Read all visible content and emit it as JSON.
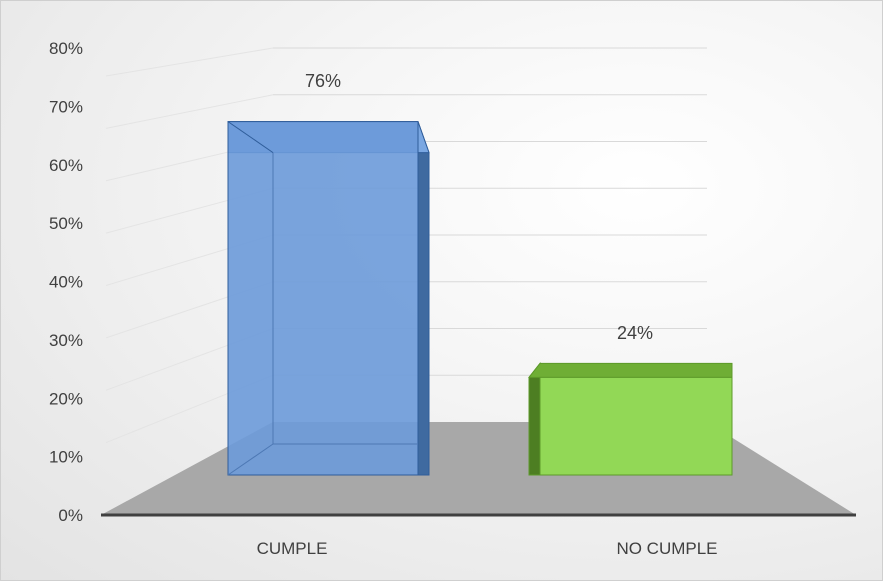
{
  "chart_data": {
    "type": "bar",
    "categories": [
      "CUMPLE",
      "NO CUMPLE"
    ],
    "values": [
      76,
      24
    ],
    "data_labels": [
      "76%",
      "24%"
    ],
    "y_ticks": [
      "0%",
      "10%",
      "20%",
      "30%",
      "40%",
      "50%",
      "60%",
      "70%",
      "80%"
    ],
    "ylim": [
      0,
      80
    ],
    "title": "",
    "xlabel": "",
    "ylabel": "",
    "grid": true,
    "legend": "none",
    "style": "3d-column",
    "colors": {
      "series": [
        "#5b8ed0",
        "#8fd44f"
      ],
      "floor": "#a8a8a8",
      "axis": "#404040",
      "grid": "#d9d9d9"
    }
  }
}
